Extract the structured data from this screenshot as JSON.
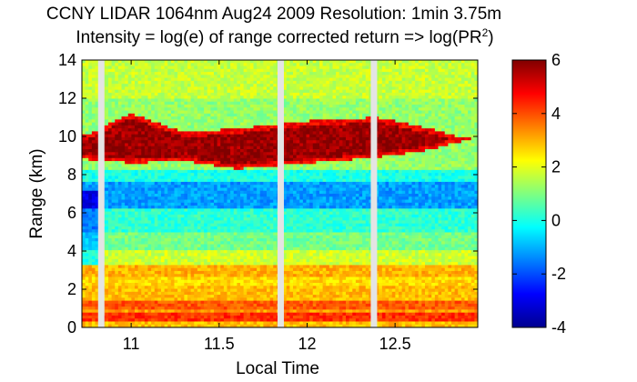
{
  "chart_data": {
    "type": "heatmap",
    "title": "CCNY LIDAR 1064nm Aug24 2009 Resolution: 1min 3.75m",
    "subtitle_main": "Intensity = log(e) of range corrected return => log(PR",
    "subtitle_sup": "2",
    "subtitle_tail": ")",
    "xlabel": "Local Time",
    "ylabel": "Range (km)",
    "xlim": [
      10.72,
      12.97
    ],
    "ylim": [
      0,
      14
    ],
    "x_ticks": [
      11,
      11.5,
      12,
      12.5
    ],
    "x_tick_labels": [
      "11",
      "11.5",
      "12",
      "12.5"
    ],
    "y_ticks": [
      0,
      2,
      4,
      6,
      8,
      10,
      12,
      14
    ],
    "y_tick_labels": [
      "0",
      "2",
      "4",
      "6",
      "8",
      "10",
      "12",
      "14"
    ],
    "grid": false,
    "colorbar": {
      "colormap": "jet",
      "range": [
        -4,
        6
      ],
      "ticks": [
        -4,
        -2,
        0,
        2,
        4,
        6
      ],
      "tick_labels": [
        "-4",
        "-2",
        "0",
        "2",
        "4",
        "6"
      ]
    },
    "data_gaps_local_time": [
      10.83,
      11.85,
      12.38
    ],
    "cloud_layer": {
      "label": "",
      "time_range": [
        10.72,
        12.93
      ],
      "base_km_by_time": [
        [
          10.75,
          8.8
        ],
        [
          11.0,
          8.6
        ],
        [
          11.3,
          8.7
        ],
        [
          11.6,
          8.3
        ],
        [
          12.0,
          8.6
        ],
        [
          12.4,
          8.9
        ],
        [
          12.7,
          9.3
        ],
        [
          12.9,
          9.8
        ]
      ],
      "top_km_by_time": [
        [
          10.75,
          10.1
        ],
        [
          11.0,
          11.2
        ],
        [
          11.3,
          10.2
        ],
        [
          11.6,
          10.4
        ],
        [
          12.0,
          10.8
        ],
        [
          12.4,
          11.0
        ],
        [
          12.7,
          10.4
        ],
        [
          12.9,
          9.9
        ]
      ],
      "value": 6
    }
  }
}
